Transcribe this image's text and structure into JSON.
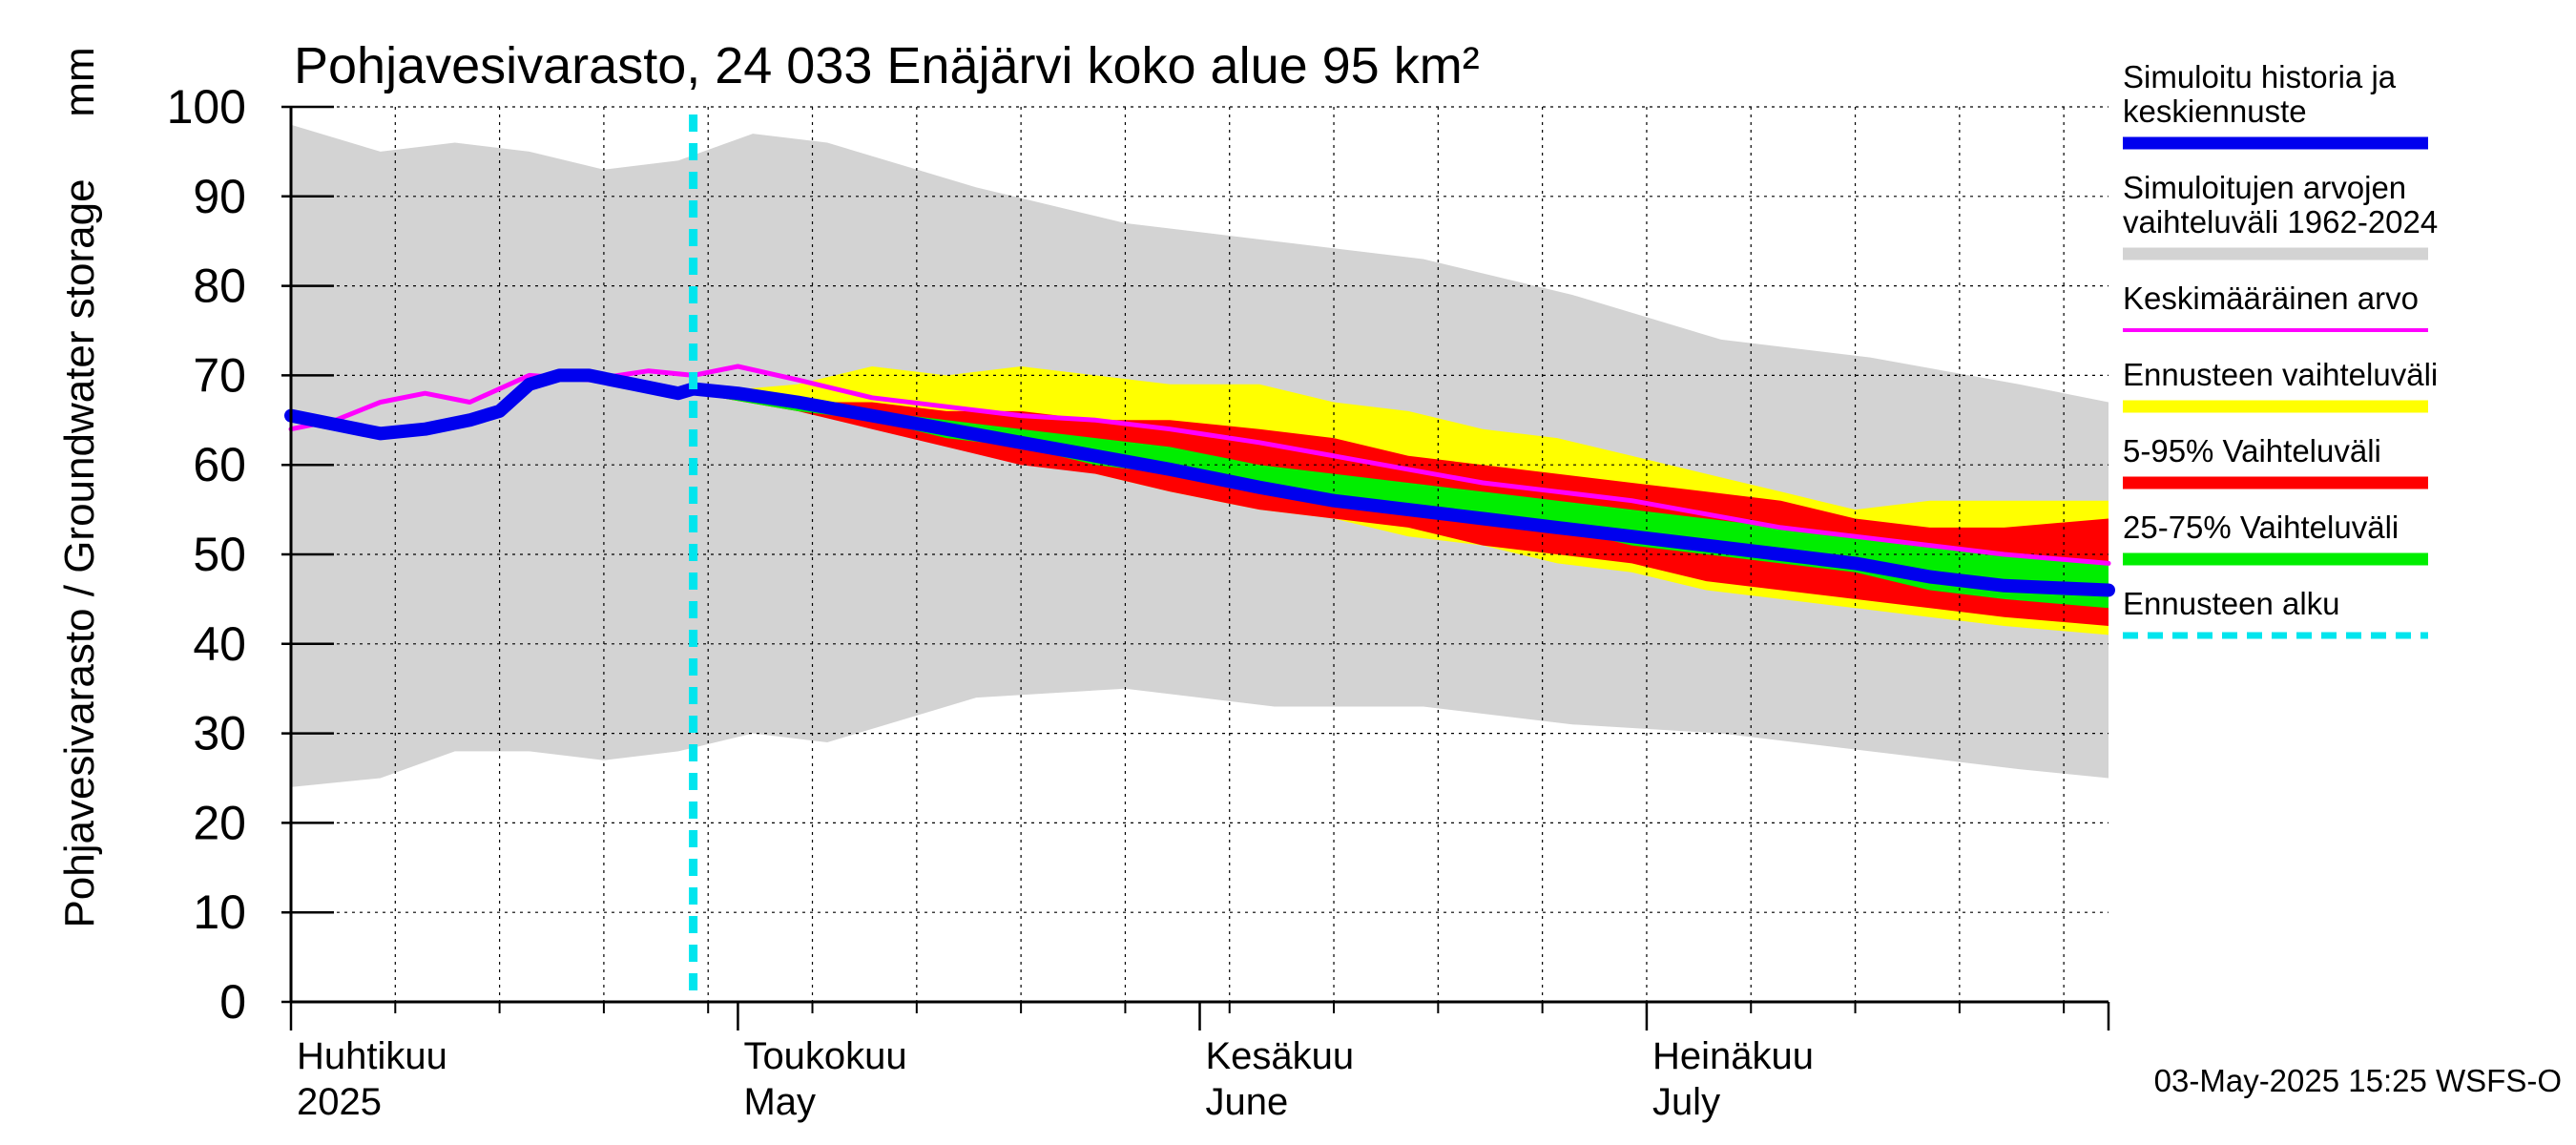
{
  "chart_data": {
    "type": "area",
    "title": "Pohjavesivarasto, 24 033 Enäjärvi koko alue 95 km²",
    "ylabel": "Pohjavesivarasto / Groundwater storage",
    "yunit": "mm",
    "ylim": [
      0,
      100
    ],
    "yticks": [
      0,
      10,
      20,
      30,
      40,
      50,
      60,
      70,
      80,
      90,
      100
    ],
    "xlim": [
      "2025-04-01",
      "2025-08-01"
    ],
    "x_month_labels": [
      {
        "fi": "Huhtikuu",
        "en": "2025",
        "date": "2025-04-01"
      },
      {
        "fi": "Toukokuu",
        "en": "May",
        "date": "2025-05-01"
      },
      {
        "fi": "Kesäkuu",
        "en": "June",
        "date": "2025-06-01"
      },
      {
        "fi": "Heinäkuu",
        "en": "July",
        "date": "2025-07-01"
      }
    ],
    "grid": true,
    "legend_position": "right",
    "forecast_start": "2025-04-28",
    "colors": {
      "history": "#0000ee",
      "range_hist": "#d3d3d3",
      "mean": "#ff00ff",
      "range_forecast": "#ffff00",
      "p5_95": "#ff0000",
      "p25_75": "#00ee00",
      "forecast_start": "#00e5ee"
    },
    "legend": [
      {
        "key": "history",
        "lines": [
          "Simuloitu historia ja",
          "keskiennuste"
        ]
      },
      {
        "key": "range_hist",
        "lines": [
          "Simuloitujen arvojen",
          "vaihteluväli 1962-2024"
        ]
      },
      {
        "key": "mean",
        "lines": [
          "Keskimääräinen arvo"
        ]
      },
      {
        "key": "range_forecast",
        "lines": [
          "Ennusteen vaihteluväli"
        ]
      },
      {
        "key": "p5_95",
        "lines": [
          "5-95% Vaihteluväli"
        ]
      },
      {
        "key": "p25_75",
        "lines": [
          "25-75% Vaihteluväli"
        ]
      },
      {
        "key": "forecast_start",
        "lines": [
          "Ennusteen alku"
        ]
      }
    ],
    "series": {
      "hist_range": {
        "x": [
          "2025-04-01",
          "2025-04-07",
          "2025-04-12",
          "2025-04-17",
          "2025-04-22",
          "2025-04-27",
          "2025-05-02",
          "2025-05-07",
          "2025-05-17",
          "2025-05-27",
          "2025-06-06",
          "2025-06-16",
          "2025-06-26",
          "2025-07-06",
          "2025-07-16",
          "2025-07-26",
          "2025-08-01"
        ],
        "upper": [
          98,
          95,
          96,
          95,
          93,
          94,
          97,
          96,
          91,
          87,
          85,
          83,
          79,
          74,
          72,
          69,
          67
        ],
        "lower": [
          24,
          25,
          28,
          28,
          27,
          28,
          30,
          29,
          34,
          35,
          33,
          33,
          31,
          30,
          28,
          26,
          25
        ]
      },
      "forecast_range": {
        "x": [
          "2025-04-28",
          "2025-05-05",
          "2025-05-10",
          "2025-05-15",
          "2025-05-20",
          "2025-05-25",
          "2025-05-30",
          "2025-06-05",
          "2025-06-10",
          "2025-06-15",
          "2025-06-20",
          "2025-06-25",
          "2025-06-30",
          "2025-07-05",
          "2025-07-10",
          "2025-07-15",
          "2025-07-20",
          "2025-07-25",
          "2025-08-01"
        ],
        "upper": [
          68,
          69,
          71,
          70,
          71,
          70,
          69,
          69,
          67,
          66,
          64,
          63,
          61,
          59,
          57,
          55,
          56,
          56,
          56
        ],
        "lower": [
          68,
          67,
          65,
          63,
          61,
          59,
          57,
          55,
          54,
          52,
          51,
          49,
          48,
          46,
          45,
          44,
          43,
          42,
          41
        ]
      },
      "p5_95": {
        "x": [
          "2025-04-28",
          "2025-05-05",
          "2025-05-10",
          "2025-05-15",
          "2025-05-20",
          "2025-05-25",
          "2025-05-30",
          "2025-06-05",
          "2025-06-10",
          "2025-06-15",
          "2025-06-20",
          "2025-06-25",
          "2025-06-30",
          "2025-07-05",
          "2025-07-10",
          "2025-07-15",
          "2025-07-20",
          "2025-07-25",
          "2025-08-01"
        ],
        "upper": [
          68,
          67,
          67,
          66,
          66,
          65,
          65,
          64,
          63,
          61,
          60,
          59,
          58,
          57,
          56,
          54,
          53,
          53,
          54
        ],
        "lower": [
          68,
          66,
          64,
          62,
          60,
          59,
          57,
          55,
          54,
          53,
          51,
          50,
          49,
          47,
          46,
          45,
          44,
          43,
          42
        ]
      },
      "p25_75": {
        "x": [
          "2025-04-28",
          "2025-05-05",
          "2025-05-10",
          "2025-05-15",
          "2025-05-20",
          "2025-05-25",
          "2025-05-30",
          "2025-06-05",
          "2025-06-10",
          "2025-06-15",
          "2025-06-20",
          "2025-06-25",
          "2025-06-30",
          "2025-07-05",
          "2025-07-10",
          "2025-07-15",
          "2025-07-20",
          "2025-07-25",
          "2025-08-01"
        ],
        "upper": [
          68,
          67,
          66,
          65,
          64,
          63,
          62,
          60,
          59,
          58,
          57,
          56,
          55,
          54,
          53,
          52,
          51,
          50,
          49
        ],
        "lower": [
          68,
          66,
          65,
          63,
          62,
          60,
          59,
          57,
          56,
          55,
          54,
          53,
          51,
          50,
          49,
          48,
          46,
          45,
          44
        ]
      },
      "mean": {
        "x": [
          "2025-04-01",
          "2025-04-04",
          "2025-04-07",
          "2025-04-10",
          "2025-04-13",
          "2025-04-17",
          "2025-04-21",
          "2025-04-25",
          "2025-04-28",
          "2025-05-01",
          "2025-05-05",
          "2025-05-10",
          "2025-05-15",
          "2025-05-20",
          "2025-05-25",
          "2025-05-30",
          "2025-06-05",
          "2025-06-10",
          "2025-06-15",
          "2025-06-20",
          "2025-06-25",
          "2025-06-30",
          "2025-07-05",
          "2025-07-10",
          "2025-07-15",
          "2025-07-20",
          "2025-07-25",
          "2025-08-01"
        ],
        "y": [
          64,
          65,
          67,
          68,
          67,
          70,
          69.5,
          70.5,
          70,
          71,
          69.5,
          67.5,
          66.5,
          65.5,
          65,
          64,
          62.5,
          61,
          59.5,
          58,
          57,
          56,
          54.5,
          53,
          52,
          51,
          50,
          49
        ]
      },
      "history_and_median": {
        "x": [
          "2025-04-01",
          "2025-04-04",
          "2025-04-07",
          "2025-04-10",
          "2025-04-13",
          "2025-04-15",
          "2025-04-17",
          "2025-04-19",
          "2025-04-21",
          "2025-04-24",
          "2025-04-27",
          "2025-04-28",
          "2025-05-01",
          "2025-05-05",
          "2025-05-10",
          "2025-05-15",
          "2025-05-20",
          "2025-05-25",
          "2025-05-30",
          "2025-06-05",
          "2025-06-10",
          "2025-06-15",
          "2025-06-20",
          "2025-06-25",
          "2025-06-30",
          "2025-07-05",
          "2025-07-10",
          "2025-07-15",
          "2025-07-20",
          "2025-07-25",
          "2025-08-01"
        ],
        "y": [
          65.5,
          64.5,
          63.5,
          64,
          65,
          66,
          69,
          70,
          70,
          69,
          68,
          68.5,
          68,
          67,
          65.5,
          64,
          62.5,
          61,
          59.5,
          57.5,
          56,
          55,
          54,
          53,
          52,
          51,
          50,
          49,
          47.5,
          46.5,
          46
        ]
      }
    }
  },
  "footer": {
    "timestamp": "03-May-2025 15:25 WSFS-O"
  }
}
